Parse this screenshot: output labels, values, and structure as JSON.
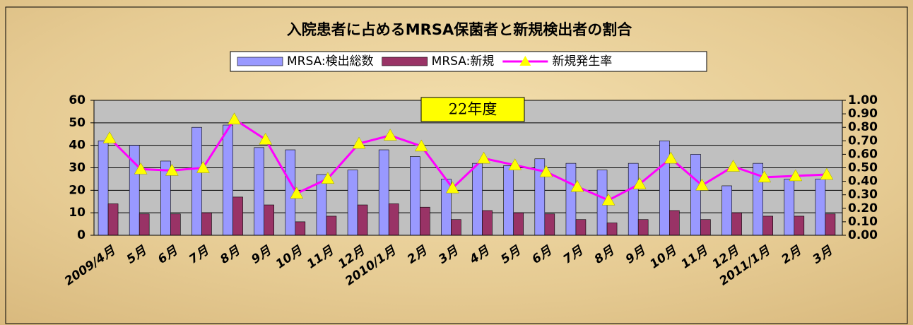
{
  "chart_data": {
    "type": "bar_line",
    "title": "入院患者に占めるMRSA保菌者と新規検出者の割合",
    "annotation": "22年度",
    "categories": [
      "2009/4月",
      "5月",
      "6月",
      "7月",
      "8月",
      "9月",
      "10月",
      "11月",
      "12月",
      "2010/1月",
      "2月",
      "3月",
      "4月",
      "5月",
      "6月",
      "7月",
      "8月",
      "9月",
      "10月",
      "11月",
      "12月",
      "2011/1月",
      "2月",
      "3月"
    ],
    "series": [
      {
        "name": "MRSA:検出総数",
        "color": "#9999ff",
        "values": [
          42,
          40,
          33,
          48,
          49,
          39,
          38,
          27,
          29,
          38,
          35,
          25,
          32,
          31,
          34,
          32,
          29,
          32,
          42,
          36,
          22,
          32,
          25,
          25
        ]
      },
      {
        "name": "MRSA:新規",
        "color": "#993366",
        "values": [
          14,
          9.5,
          9.5,
          10,
          17,
          13.5,
          6,
          8.5,
          13.5,
          14,
          12.5,
          7,
          11,
          10,
          9.5,
          7,
          5.5,
          7,
          11,
          7,
          10,
          8.5,
          8.5,
          9.5
        ]
      },
      {
        "name": "新規発生率",
        "color": "#ff00ff",
        "marker_color": "#ffff00",
        "axis": "y2",
        "values": [
          0.72,
          0.49,
          0.48,
          0.5,
          0.86,
          0.71,
          0.31,
          0.42,
          0.68,
          0.74,
          0.66,
          0.35,
          0.57,
          0.52,
          0.47,
          0.36,
          0.26,
          0.38,
          0.57,
          0.37,
          0.51,
          0.43,
          0.44,
          0.45
        ]
      }
    ],
    "ylim": [
      0,
      60
    ],
    "yticks": [
      0,
      10,
      20,
      30,
      40,
      50,
      60
    ],
    "y2lim": [
      0,
      1
    ],
    "y2ticks": [
      {
        "value": 0,
        "label": "0.00"
      },
      {
        "value": 0.1,
        "label": "0.10"
      },
      {
        "value": 0.2,
        "label": "0.20"
      },
      {
        "value": 0.3,
        "label": "0.30"
      },
      {
        "value": 0.4,
        "label": "0.40"
      },
      {
        "value": 0.5,
        "label": "0.50"
      },
      {
        "value": 0.6,
        "label": "0.60"
      },
      {
        "value": 0.7,
        "label": "0.70"
      },
      {
        "value": 0.8,
        "label": "0.80"
      },
      {
        "value": 0.9,
        "label": "0.90"
      },
      {
        "value": 1,
        "label": "1.00"
      }
    ],
    "grid": true
  }
}
